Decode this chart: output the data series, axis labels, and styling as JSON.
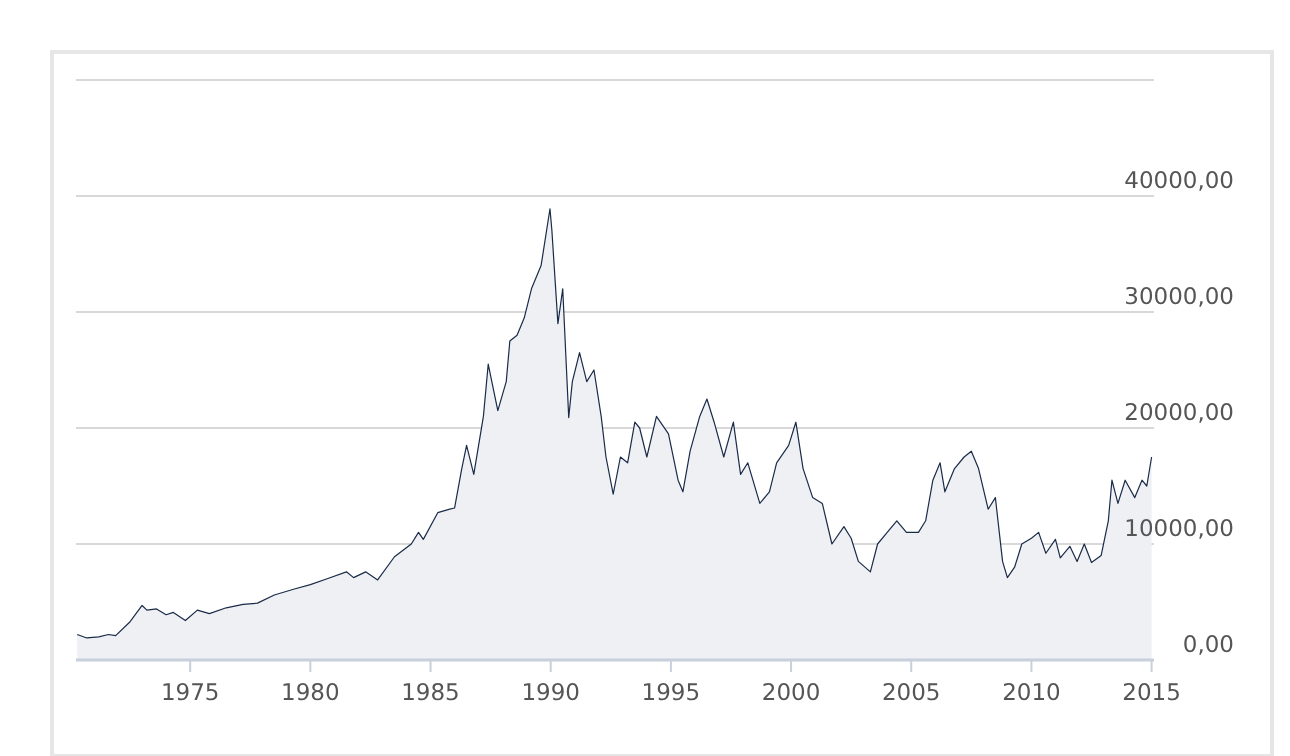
{
  "chart_data": {
    "type": "area",
    "xlim": [
      1970.25,
      2015.1
    ],
    "xticks": [
      1975,
      1980,
      1985,
      1990,
      1995,
      2000,
      2005,
      2010,
      2015
    ],
    "ylim": [
      0,
      50000
    ],
    "yticks": [
      {
        "value": 0,
        "label": "0,00"
      },
      {
        "value": 10000,
        "label": "10000,00"
      },
      {
        "value": 20000,
        "label": "20000,00"
      },
      {
        "value": 30000,
        "label": "30000,00"
      },
      {
        "value": 40000,
        "label": "40000,00"
      },
      {
        "value": 50000,
        "label": null
      }
    ],
    "grid": "y",
    "series": [
      {
        "color": "#1a2b48",
        "x": [
          1970.3,
          1970.7,
          1971.2,
          1971.6,
          1971.9,
          1972.5,
          1973.0,
          1973.2,
          1973.6,
          1974.0,
          1974.3,
          1974.8,
          1975.3,
          1975.8,
          1976.5,
          1977.2,
          1977.8,
          1978.5,
          1979.3,
          1980.0,
          1980.7,
          1981.5,
          1981.8,
          1982.3,
          1982.8,
          1983.5,
          1984.2,
          1984.5,
          1984.7,
          1985.3,
          1985.8,
          1986.0,
          1986.3,
          1986.5,
          1986.8,
          1987.2,
          1987.4,
          1987.55,
          1987.8,
          1988.15,
          1988.3,
          1988.6,
          1988.9,
          1989.2,
          1989.6,
          1989.97,
          1990.05,
          1990.3,
          1990.5,
          1990.75,
          1990.9,
          1991.2,
          1991.5,
          1991.8,
          1992.1,
          1992.3,
          1992.6,
          1992.9,
          1993.2,
          1993.5,
          1993.7,
          1994.0,
          1994.4,
          1994.9,
          1995.3,
          1995.5,
          1995.8,
          1996.2,
          1996.5,
          1996.8,
          1997.2,
          1997.6,
          1997.9,
          1998.2,
          1998.7,
          1999.1,
          1999.4,
          1999.9,
          2000.2,
          2000.5,
          2000.9,
          2001.3,
          2001.7,
          2002.2,
          2002.5,
          2002.8,
          2003.3,
          2003.6,
          2004.0,
          2004.4,
          2004.8,
          2005.3,
          2005.6,
          2005.9,
          2006.2,
          2006.4,
          2006.8,
          2007.2,
          2007.5,
          2007.8,
          2008.2,
          2008.5,
          2008.8,
          2009.0,
          2009.3,
          2009.6,
          2010.0,
          2010.3,
          2010.6,
          2011.0,
          2011.2,
          2011.6,
          2011.9,
          2012.2,
          2012.5,
          2012.9,
          2013.2,
          2013.35,
          2013.6,
          2013.9,
          2014.3,
          2014.6,
          2014.8,
          2015.0
        ],
        "values": [
          2200,
          1900,
          2000,
          2200,
          2100,
          3300,
          4700,
          4300,
          4400,
          3900,
          4100,
          3400,
          4300,
          4000,
          4500,
          4800,
          4900,
          5600,
          6100,
          6500,
          7000,
          7600,
          7100,
          7600,
          6900,
          8900,
          10000,
          11000,
          10400,
          12700,
          13000,
          13100,
          16500,
          18500,
          16000,
          21000,
          25500,
          24000,
          21500,
          24000,
          27500,
          28000,
          29500,
          32000,
          34000,
          38900,
          37000,
          29000,
          32000,
          20900,
          24000,
          26500,
          24000,
          25000,
          21000,
          17500,
          14300,
          17500,
          17000,
          20500,
          20000,
          17500,
          21000,
          19500,
          15500,
          14500,
          18000,
          21000,
          22500,
          20500,
          17500,
          20500,
          16000,
          17000,
          13500,
          14500,
          17000,
          18500,
          20500,
          16500,
          14000,
          13500,
          10000,
          11500,
          10500,
          8500,
          7600,
          10000,
          11000,
          12000,
          11000,
          11000,
          12000,
          15500,
          17000,
          14500,
          16500,
          17500,
          18000,
          16500,
          13000,
          14000,
          8500,
          7100,
          8000,
          10000,
          10500,
          11000,
          9200,
          10400,
          8800,
          9800,
          8500,
          10000,
          8400,
          9000,
          12000,
          15500,
          13500,
          15500,
          14000,
          15500,
          15000,
          17500
        ]
      }
    ]
  }
}
